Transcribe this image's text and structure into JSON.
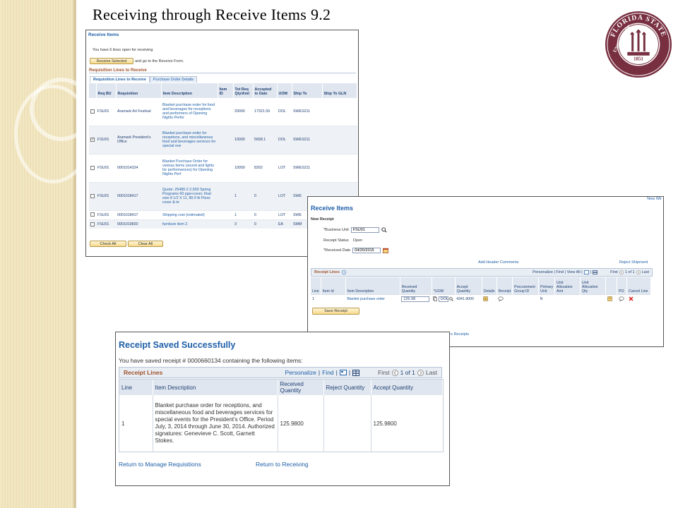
{
  "slide": {
    "title": "Receiving through Receive Items 9.2"
  },
  "seal": {
    "top_text": "FLORIDA STATE",
    "bottom_text": "UNIVERSITY",
    "year": "1851",
    "ribbon": "VIRES ARTES MORES",
    "color": "#782f40"
  },
  "receive_items": {
    "title": "Receive Items",
    "open_lines_msg": "You have 6 lines open for receiving",
    "receive_selected_label": "Receive Selected",
    "and_go_text": "and go to the Receive Form.",
    "section_title": "Requisition Lines to Receive",
    "tabs": [
      "Requisition Lines to Receive",
      "Purchase Order Details"
    ],
    "columns": [
      "",
      "Req BU",
      "Requisition",
      "Item Description",
      "Item ID",
      "Tot Req Qty/Amt",
      "Accepted to Date",
      "UOM",
      "Ship To",
      "Ship To GLN"
    ],
    "rows": [
      {
        "checked": false,
        "bu": "FSU01",
        "req": "Aramark Art Festival",
        "desc": "Blanket purchase order for food and beverages for receptions and performers of Opening Nights Perfor",
        "item": "",
        "qty": "20000",
        "accepted": "17321.59",
        "uom": "DOL",
        "ship": "SWES211",
        "gln": ""
      },
      {
        "checked": true,
        "bu": "FSU01",
        "req": "Aramark President's Office",
        "desc": "Blanket purchase order for receptions, and miscellaneous food and beverages services for special eve",
        "item": "",
        "qty": "10000",
        "accepted": "5658.1",
        "uom": "DOL",
        "ship": "SWES211",
        "gln": ""
      },
      {
        "checked": false,
        "bu": "FSU01",
        "req": "0001014324",
        "desc": "Blanket Purchase Order for various items (sound and lights for performances) for Opening Nights Perf",
        "item": "",
        "qty": "10000",
        "accepted": "8202",
        "uom": "LOT",
        "ship": "SWES211",
        "gln": ""
      },
      {
        "checked": false,
        "bu": "FSU01",
        "req": "0001018417",
        "desc": "Quote: 25480-2 2,500 Spring Programs 60 pgs+cover, final size 8 1/2 X 11, 80.0 lb Floss cover & te",
        "item": "",
        "qty": "1",
        "accepted": "0",
        "uom": "LOT",
        "ship": "SWE",
        "gln": ""
      },
      {
        "checked": false,
        "bu": "FSU01",
        "req": "0001018417",
        "desc": "Shipping cost (estimated)",
        "item": "",
        "qty": "1",
        "accepted": "0",
        "uom": "LOT",
        "ship": "SWE",
        "gln": ""
      },
      {
        "checked": false,
        "bu": "FSU01",
        "req": "0001019820",
        "desc": "furniture item 2",
        "item": "",
        "qty": "3",
        "accepted": "0",
        "uom": "EA",
        "ship": "SMM",
        "gln": ""
      }
    ],
    "check_all_label": "Check All",
    "clear_all_label": "Clear All"
  },
  "new_receipt": {
    "title": "Receive Items",
    "new_win": "New Wir",
    "subtitle": "New Receipt",
    "business_unit_label": "*Business Unit",
    "business_unit_value": "FSU01",
    "status_label": "Receipt Status",
    "status_value": "Open",
    "date_label": "*Received Date",
    "date_value": "04/20/2015",
    "header_comments": "Add Header Comments",
    "reject_shipment": "Reject Shipment",
    "grid_title": "Receipt Lines",
    "grid_nav": "Personalize | Find | View All |",
    "grid_pager": "First",
    "grid_range": "1 of 1",
    "grid_last": "Last",
    "columns": [
      "Line",
      "Item Id",
      "Item Description",
      "Received Quantity",
      "*UOM",
      "Accept Quantity",
      "Details",
      "Receipt",
      "Procurement Group ID",
      "Primary Unit",
      "Unit Allocation Amt",
      "Unit Allocation Qty",
      "",
      "PO",
      "Cancel Line"
    ],
    "row": {
      "line": "1",
      "item_id": "",
      "desc": "Blanket purchase order",
      "received": "125.98",
      "uom": "DOL",
      "accept": "4341.9000",
      "primary_unit": "N"
    },
    "save_label": "Save Receipt",
    "bottom_link": "e Receipts"
  },
  "saved": {
    "title": "Receipt Saved Successfully",
    "message": "You have saved receipt # 0000660134 containing the following items:",
    "grid_title": "Receipt Lines",
    "personalize": "Personalize",
    "find": "Find",
    "first": "First",
    "range": "1 of 1",
    "last": "Last",
    "columns": [
      "Line",
      "Item Description",
      "Received Quantity",
      "Reject Quantity",
      "Accept Quantity"
    ],
    "row": {
      "line": "1",
      "desc": "Blanket purchase order for receptions, and miscellaneous food and beverages services for special events for the President's Office.  Period July, 3, 2014 through June 30, 2014.  Authorized signatures:  Genevieve C. Scott, Garnett Stokes.",
      "received": "125.9800",
      "reject": "",
      "accept": "125.9800"
    },
    "link_requisitions": "Return to Manage Requisitions",
    "link_receiving": "Return to Receiving"
  }
}
